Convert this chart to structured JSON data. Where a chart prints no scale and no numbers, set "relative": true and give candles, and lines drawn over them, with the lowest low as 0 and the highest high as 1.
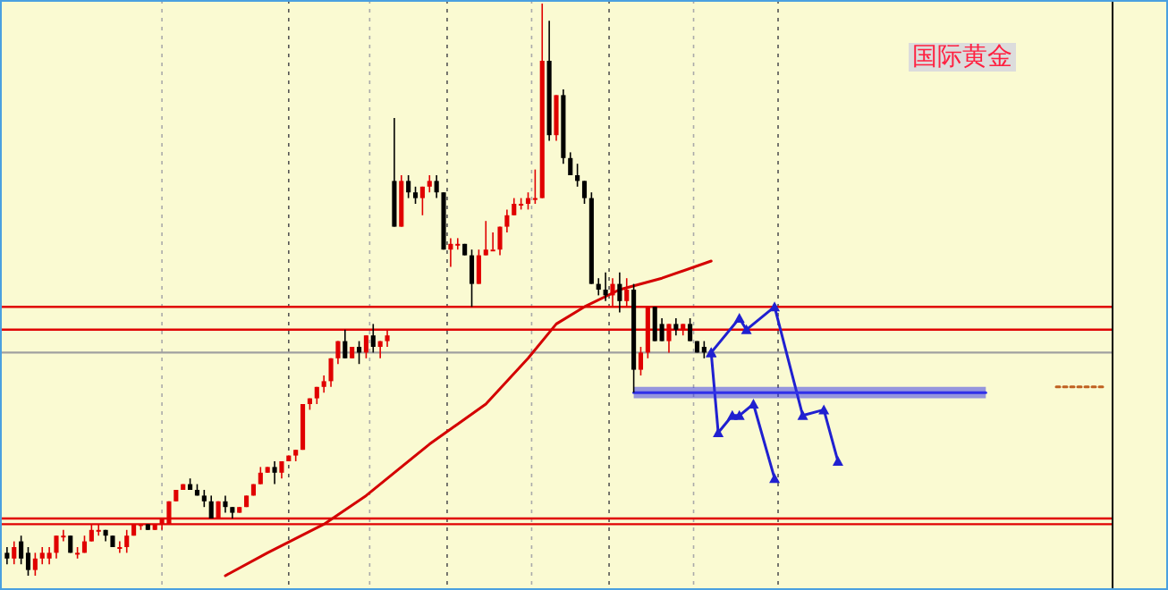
{
  "chart_data": {
    "type": "candlestick",
    "relative": true,
    "annotations": [
      "国际黄金"
    ],
    "categories": [
      null,
      null,
      null,
      null,
      null,
      null,
      null,
      null,
      null,
      null,
      null,
      null,
      null,
      null,
      null,
      null,
      null,
      null,
      null,
      null,
      null,
      null,
      null,
      null,
      null,
      null,
      null,
      null,
      null,
      null,
      null,
      null,
      null,
      null,
      null,
      null,
      null,
      null,
      null,
      null,
      null,
      null,
      null,
      null,
      null,
      null,
      null,
      null,
      null,
      null,
      null,
      null,
      null,
      null,
      null,
      null,
      null,
      null,
      null,
      null,
      null,
      null,
      null,
      null,
      null,
      null,
      null,
      null,
      null,
      null,
      null,
      null,
      null,
      null,
      null,
      null,
      null,
      null,
      null,
      null,
      null,
      null,
      null,
      null,
      null,
      null,
      null,
      null,
      null,
      null,
      null,
      null,
      null,
      null,
      null,
      null,
      null,
      null,
      null,
      null,
      null,
      null,
      null,
      null,
      null,
      null,
      null,
      null,
      null,
      null,
      null,
      null,
      null,
      null,
      null,
      null,
      null,
      null,
      null,
      null,
      null,
      null,
      null,
      null,
      null,
      null,
      null,
      null,
      null,
      null,
      null,
      null,
      null,
      null,
      null,
      null,
      null,
      null,
      null,
      null,
      null,
      null,
      null,
      null,
      null,
      null,
      null,
      null,
      null,
      null,
      null,
      null,
      null,
      null,
      null,
      null,
      null,
      null
    ],
    "ohlc": [
      [
        0.04,
        0.05,
        0.02,
        0.03
      ],
      [
        0.03,
        0.06,
        0.02,
        0.05
      ],
      [
        0.06,
        0.07,
        0.02,
        0.03
      ],
      [
        0.04,
        0.05,
        0.0,
        0.01
      ],
      [
        0.01,
        0.04,
        0.0,
        0.03
      ],
      [
        0.03,
        0.05,
        0.02,
        0.04
      ],
      [
        0.03,
        0.05,
        0.02,
        0.04
      ],
      [
        0.04,
        0.07,
        0.03,
        0.07
      ],
      [
        0.07,
        0.08,
        0.06,
        0.07
      ],
      [
        0.07,
        0.07,
        0.04,
        0.04
      ],
      [
        0.04,
        0.05,
        0.03,
        0.04
      ],
      [
        0.04,
        0.07,
        0.04,
        0.06
      ],
      [
        0.06,
        0.09,
        0.06,
        0.08
      ],
      [
        0.08,
        0.09,
        0.07,
        0.08
      ],
      [
        0.08,
        0.08,
        0.06,
        0.07
      ],
      [
        0.07,
        0.07,
        0.05,
        0.05
      ],
      [
        0.05,
        0.06,
        0.04,
        0.05
      ],
      [
        0.05,
        0.08,
        0.04,
        0.07
      ],
      [
        0.07,
        0.09,
        0.07,
        0.09
      ],
      [
        0.09,
        0.09,
        0.08,
        0.09
      ],
      [
        0.09,
        0.09,
        0.08,
        0.08
      ],
      [
        0.08,
        0.09,
        0.08,
        0.09
      ],
      [
        0.09,
        0.1,
        0.08,
        0.1
      ],
      [
        0.09,
        0.13,
        0.09,
        0.13
      ],
      [
        0.13,
        0.15,
        0.13,
        0.15
      ],
      [
        0.15,
        0.16,
        0.15,
        0.16
      ],
      [
        0.16,
        0.17,
        0.15,
        0.15
      ],
      [
        0.15,
        0.16,
        0.14,
        0.14
      ],
      [
        0.14,
        0.15,
        0.12,
        0.13
      ],
      [
        0.13,
        0.14,
        0.1,
        0.1
      ],
      [
        0.1,
        0.13,
        0.1,
        0.13
      ],
      [
        0.13,
        0.14,
        0.11,
        0.12
      ],
      [
        0.12,
        0.12,
        0.1,
        0.11
      ],
      [
        0.11,
        0.12,
        0.11,
        0.12
      ],
      [
        0.12,
        0.14,
        0.12,
        0.14
      ],
      [
        0.14,
        0.16,
        0.14,
        0.16
      ],
      [
        0.16,
        0.19,
        0.16,
        0.18
      ],
      [
        0.18,
        0.19,
        0.18,
        0.19
      ],
      [
        0.19,
        0.2,
        0.16,
        0.18
      ],
      [
        0.18,
        0.2,
        0.17,
        0.2
      ],
      [
        0.2,
        0.21,
        0.2,
        0.21
      ],
      [
        0.21,
        0.22,
        0.2,
        0.22
      ],
      [
        0.22,
        0.3,
        0.22,
        0.3
      ],
      [
        0.3,
        0.31,
        0.29,
        0.31
      ],
      [
        0.31,
        0.33,
        0.3,
        0.33
      ],
      [
        0.33,
        0.35,
        0.32,
        0.34
      ],
      [
        0.34,
        0.38,
        0.33,
        0.38
      ],
      [
        0.38,
        0.41,
        0.37,
        0.41
      ],
      [
        0.41,
        0.43,
        0.38,
        0.38
      ],
      [
        0.38,
        0.4,
        0.38,
        0.4
      ],
      [
        0.4,
        0.41,
        0.37,
        0.39
      ],
      [
        0.39,
        0.42,
        0.38,
        0.42
      ],
      [
        0.42,
        0.44,
        0.39,
        0.4
      ],
      [
        0.4,
        0.41,
        0.38,
        0.41
      ],
      [
        0.41,
        0.43,
        0.4,
        0.42
      ],
      [
        0.69,
        0.8,
        0.61,
        0.61
      ],
      [
        0.61,
        0.7,
        0.61,
        0.69
      ],
      [
        0.69,
        0.7,
        0.66,
        0.67
      ],
      [
        0.67,
        0.68,
        0.65,
        0.66
      ],
      [
        0.66,
        0.68,
        0.63,
        0.68
      ],
      [
        0.68,
        0.7,
        0.67,
        0.69
      ],
      [
        0.69,
        0.7,
        0.66,
        0.67
      ],
      [
        0.67,
        0.67,
        0.57,
        0.57
      ],
      [
        0.57,
        0.59,
        0.54,
        0.58
      ],
      [
        0.58,
        0.59,
        0.57,
        0.58
      ],
      [
        0.58,
        0.58,
        0.56,
        0.56
      ],
      [
        0.56,
        0.57,
        0.47,
        0.51
      ],
      [
        0.51,
        0.57,
        0.51,
        0.56
      ],
      [
        0.56,
        0.62,
        0.56,
        0.57
      ],
      [
        0.57,
        0.6,
        0.57,
        0.57
      ],
      [
        0.57,
        0.61,
        0.56,
        0.61
      ],
      [
        0.61,
        0.64,
        0.6,
        0.63
      ],
      [
        0.63,
        0.66,
        0.63,
        0.65
      ],
      [
        0.65,
        0.66,
        0.64,
        0.65
      ],
      [
        0.65,
        0.67,
        0.64,
        0.66
      ],
      [
        0.66,
        0.71,
        0.65,
        0.66
      ],
      [
        0.66,
        1.0,
        0.66,
        0.9
      ],
      [
        0.9,
        0.97,
        0.76,
        0.77
      ],
      [
        0.77,
        0.84,
        0.76,
        0.84
      ],
      [
        0.84,
        0.85,
        0.72,
        0.73
      ],
      [
        0.73,
        0.74,
        0.7,
        0.7
      ],
      [
        0.7,
        0.72,
        0.68,
        0.69
      ],
      [
        0.69,
        0.69,
        0.65,
        0.66
      ],
      [
        0.66,
        0.67,
        0.51,
        0.51
      ],
      [
        0.51,
        0.52,
        0.49,
        0.5
      ],
      [
        0.5,
        0.53,
        0.48,
        0.49
      ],
      [
        0.49,
        0.52,
        0.47,
        0.51
      ],
      [
        0.51,
        0.53,
        0.46,
        0.48
      ],
      [
        0.48,
        0.52,
        0.47,
        0.5
      ],
      [
        0.5,
        0.51,
        0.32,
        0.36
      ],
      [
        0.36,
        0.4,
        0.35,
        0.39
      ],
      [
        0.39,
        0.47,
        0.38,
        0.47
      ],
      [
        0.47,
        0.47,
        0.41,
        0.41
      ],
      [
        0.44,
        0.45,
        0.41,
        0.41
      ],
      [
        0.41,
        0.44,
        0.39,
        0.44
      ],
      [
        0.44,
        0.45,
        0.42,
        0.43
      ],
      [
        0.43,
        0.44,
        0.42,
        0.44
      ],
      [
        0.44,
        0.45,
        0.41,
        0.41
      ],
      [
        0.41,
        0.41,
        0.39,
        0.39
      ],
      [
        0.4,
        0.41,
        0.38,
        0.39
      ],
      null,
      null,
      null,
      null,
      null,
      null,
      null,
      null,
      null,
      null,
      null,
      null,
      null,
      null,
      null,
      null,
      null,
      null,
      null,
      null,
      null,
      null,
      null,
      null,
      null,
      null,
      null,
      null,
      null,
      null,
      null,
      null,
      null,
      null,
      null,
      null,
      null,
      null,
      null,
      null,
      null,
      null,
      null,
      null,
      null,
      null,
      null,
      null,
      null,
      null,
      null,
      null,
      null,
      null,
      null,
      null,
      null,
      null
    ],
    "series": [
      {
        "type": "line",
        "color": "#d40000",
        "values": [
          null,
          null,
          null,
          null,
          null,
          null,
          null,
          null,
          null,
          null,
          null,
          null,
          null,
          null,
          null,
          null,
          null,
          null,
          null,
          null,
          null,
          null,
          null,
          null,
          null,
          null,
          null,
          null,
          null,
          null,
          null,
          0.0,
          null,
          null,
          null,
          null,
          null,
          0.04,
          null,
          null,
          null,
          null,
          null,
          null,
          null,
          0.09,
          null,
          null,
          null,
          null,
          null,
          0.14,
          null,
          null,
          null,
          null,
          null,
          null,
          null,
          null,
          0.23,
          null,
          null,
          null,
          null,
          null,
          null,
          null,
          0.3,
          null,
          null,
          null,
          null,
          null,
          0.38,
          null,
          null,
          null,
          0.44,
          null,
          null,
          null,
          0.47,
          null,
          null,
          null,
          null,
          0.5,
          null,
          null,
          null,
          null,
          null,
          0.52,
          null,
          null,
          null,
          null,
          null,
          null,
          0.55,
          null,
          null,
          null,
          null,
          null,
          null,
          null,
          null,
          null,
          null,
          null,
          null,
          null,
          null,
          null,
          null,
          null,
          null,
          null,
          null,
          null,
          null,
          null,
          null,
          null,
          null,
          null,
          null,
          null,
          null,
          null,
          null,
          null,
          null,
          null,
          null,
          null,
          null,
          null,
          null,
          null,
          null,
          null,
          null,
          null,
          null,
          null,
          null,
          null,
          null,
          null,
          null,
          null,
          null,
          null,
          null,
          null
        ]
      },
      {
        "type": "line",
        "color": "#2020d0",
        "marker": "triangle",
        "values": [
          null,
          null,
          null,
          null,
          null,
          null,
          null,
          null,
          null,
          null,
          null,
          null,
          null,
          null,
          null,
          null,
          null,
          null,
          null,
          null,
          null,
          null,
          null,
          null,
          null,
          null,
          null,
          null,
          null,
          null,
          null,
          null,
          null,
          null,
          null,
          null,
          null,
          null,
          null,
          null,
          null,
          null,
          null,
          null,
          null,
          null,
          null,
          null,
          null,
          null,
          null,
          null,
          null,
          null,
          null,
          null,
          null,
          null,
          null,
          null,
          null,
          null,
          null,
          null,
          null,
          null,
          null,
          null,
          null,
          null,
          null,
          null,
          null,
          null,
          null,
          null,
          null,
          null,
          null,
          null,
          null,
          null,
          null,
          null,
          null,
          null,
          null,
          null,
          null,
          null,
          null,
          null,
          null,
          null,
          null,
          null,
          null,
          null,
          null,
          null,
          0.39,
          null,
          null,
          null,
          0.45,
          0.43,
          null,
          null,
          null,
          0.47,
          null,
          null,
          null,
          0.28,
          null,
          null,
          0.29,
          null,
          0.2,
          null,
          null,
          null,
          null,
          null,
          null,
          null,
          null,
          null,
          null,
          null,
          null,
          null,
          null,
          null,
          null,
          null,
          null,
          null,
          null,
          null,
          null,
          null,
          null,
          null,
          null,
          null,
          null,
          null,
          null,
          null,
          null,
          null,
          null,
          null,
          null,
          null,
          null,
          null
        ]
      },
      {
        "type": "line",
        "color": "#2020d0",
        "marker": "triangle",
        "values": [
          null,
          null,
          null,
          null,
          null,
          null,
          null,
          null,
          null,
          null,
          null,
          null,
          null,
          null,
          null,
          null,
          null,
          null,
          null,
          null,
          null,
          null,
          null,
          null,
          null,
          null,
          null,
          null,
          null,
          null,
          null,
          null,
          null,
          null,
          null,
          null,
          null,
          null,
          null,
          null,
          null,
          null,
          null,
          null,
          null,
          null,
          null,
          null,
          null,
          null,
          null,
          null,
          null,
          null,
          null,
          null,
          null,
          null,
          null,
          null,
          null,
          null,
          null,
          null,
          null,
          null,
          null,
          null,
          null,
          null,
          null,
          null,
          null,
          null,
          null,
          null,
          null,
          null,
          null,
          null,
          null,
          null,
          null,
          null,
          null,
          null,
          null,
          null,
          null,
          null,
          null,
          null,
          null,
          null,
          null,
          null,
          null,
          null,
          null,
          null,
          0.39,
          0.25,
          null,
          0.28,
          0.28,
          null,
          0.3,
          null,
          null,
          0.17,
          null,
          null,
          null,
          null,
          null,
          null,
          null,
          null,
          null,
          null,
          null,
          null,
          null,
          null,
          null,
          null,
          null,
          null,
          null,
          null,
          null,
          null,
          null,
          null,
          null,
          null,
          null,
          null,
          null,
          null,
          null,
          null,
          null,
          null,
          null,
          null,
          null,
          null,
          null,
          null,
          null,
          null,
          null,
          null,
          null,
          null,
          null,
          null
        ]
      },
      {
        "type": "line",
        "color": "#3030e8",
        "values": [
          null,
          null,
          null,
          null,
          null,
          null,
          null,
          null,
          null,
          null,
          null,
          null,
          null,
          null,
          null,
          null,
          null,
          null,
          null,
          null,
          null,
          null,
          null,
          null,
          null,
          null,
          null,
          null,
          null,
          null,
          null,
          null,
          null,
          null,
          null,
          null,
          null,
          null,
          null,
          null,
          null,
          null,
          null,
          null,
          null,
          null,
          null,
          null,
          null,
          null,
          null,
          null,
          null,
          null,
          null,
          null,
          null,
          null,
          null,
          null,
          null,
          null,
          null,
          null,
          null,
          null,
          null,
          null,
          null,
          null,
          null,
          null,
          null,
          null,
          null,
          null,
          null,
          null,
          null,
          null,
          null,
          null,
          null,
          null,
          null,
          null,
          null,
          null,
          null,
          0.32,
          null,
          null,
          null,
          null,
          null,
          null,
          null,
          null,
          null,
          null,
          null,
          null,
          null,
          null,
          null,
          null,
          null,
          null,
          null,
          null,
          null,
          null,
          null,
          null,
          null,
          null,
          null,
          null,
          null,
          null,
          null,
          null,
          null,
          null,
          null,
          null,
          null,
          null,
          null,
          null,
          null,
          null,
          null,
          null,
          null,
          null,
          null,
          null,
          null,
          0.32,
          null,
          null,
          null,
          null,
          null,
          null,
          null,
          null,
          null,
          null,
          null,
          null,
          null,
          null,
          null,
          null,
          null,
          null
        ],
        "lower": [
          null,
          null,
          null,
          null,
          null,
          null,
          null,
          null,
          null,
          null,
          null,
          null,
          null,
          null,
          null,
          null,
          null,
          null,
          null,
          null,
          null,
          null,
          null,
          null,
          null,
          null,
          null,
          null,
          null,
          null,
          null,
          null,
          null,
          null,
          null,
          null,
          null,
          null,
          null,
          null,
          null,
          null,
          null,
          null,
          null,
          null,
          null,
          null,
          null,
          null,
          null,
          null,
          null,
          null,
          null,
          null,
          null,
          null,
          null,
          null,
          null,
          null,
          null,
          null,
          null,
          null,
          null,
          null,
          null,
          null,
          null,
          null,
          null,
          null,
          null,
          null,
          null,
          null,
          null,
          null,
          null,
          null,
          null,
          null,
          null,
          null,
          null,
          null,
          null,
          0.31,
          null,
          null,
          null,
          null,
          null,
          null,
          null,
          null,
          null,
          null,
          null,
          null,
          null,
          null,
          null,
          null,
          null,
          null,
          null,
          null,
          null,
          null,
          null,
          null,
          null,
          null,
          null,
          null,
          null,
          null,
          null,
          null,
          null,
          null,
          null,
          null,
          null,
          null,
          null,
          null,
          null,
          null,
          null,
          null,
          null,
          null,
          null,
          null,
          null,
          0.31,
          null,
          null,
          null,
          null,
          null,
          null,
          null,
          null,
          null,
          null,
          null,
          null,
          null,
          null,
          null,
          null,
          null,
          null
        ],
        "upper": [
          null,
          null,
          null,
          null,
          null,
          null,
          null,
          null,
          null,
          null,
          null,
          null,
          null,
          null,
          null,
          null,
          null,
          null,
          null,
          null,
          null,
          null,
          null,
          null,
          null,
          null,
          null,
          null,
          null,
          null,
          null,
          null,
          null,
          null,
          null,
          null,
          null,
          null,
          null,
          null,
          null,
          null,
          null,
          null,
          null,
          null,
          null,
          null,
          null,
          null,
          null,
          null,
          null,
          null,
          null,
          null,
          null,
          null,
          null,
          null,
          null,
          null,
          null,
          null,
          null,
          null,
          null,
          null,
          null,
          null,
          null,
          null,
          null,
          null,
          null,
          null,
          null,
          null,
          null,
          null,
          null,
          null,
          null,
          null,
          null,
          null,
          null,
          null,
          null,
          0.33,
          null,
          null,
          null,
          null,
          null,
          null,
          null,
          null,
          null,
          null,
          null,
          null,
          null,
          null,
          null,
          null,
          null,
          null,
          null,
          null,
          null,
          null,
          null,
          null,
          null,
          null,
          null,
          null,
          null,
          null,
          null,
          null,
          null,
          null,
          null,
          null,
          null,
          null,
          null,
          null,
          null,
          null,
          null,
          null,
          null,
          null,
          null,
          null,
          null,
          0.33,
          null,
          null,
          null,
          null,
          null,
          null,
          null,
          null,
          null,
          null,
          null,
          null,
          null,
          null,
          null,
          null,
          null,
          null
        ]
      },
      {
        "type": "line",
        "color": "#c06020",
        "line_style": "dotted",
        "values": [
          null,
          null,
          null,
          null,
          null,
          null,
          null,
          null,
          null,
          null,
          null,
          null,
          null,
          null,
          null,
          null,
          null,
          null,
          null,
          null,
          null,
          null,
          null,
          null,
          null,
          null,
          null,
          null,
          null,
          null,
          null,
          null,
          null,
          null,
          null,
          null,
          null,
          null,
          null,
          null,
          null,
          null,
          null,
          null,
          null,
          null,
          null,
          null,
          null,
          null,
          null,
          null,
          null,
          null,
          null,
          null,
          null,
          null,
          null,
          null,
          null,
          null,
          null,
          null,
          null,
          null,
          null,
          null,
          null,
          null,
          null,
          null,
          null,
          null,
          null,
          null,
          null,
          null,
          null,
          null,
          null,
          null,
          null,
          null,
          null,
          null,
          null,
          null,
          null,
          null,
          null,
          null,
          null,
          null,
          null,
          null,
          null,
          null,
          null,
          null,
          null,
          null,
          null,
          null,
          null,
          null,
          null,
          null,
          null,
          null,
          null,
          null,
          null,
          null,
          null,
          null,
          null,
          null,
          null,
          null,
          null,
          null,
          null,
          null,
          null,
          null,
          null,
          null,
          null,
          null,
          null,
          null,
          null,
          null,
          null,
          null,
          null,
          null,
          null,
          null,
          null,
          null,
          null,
          null,
          null,
          null,
          null,
          null,
          null,
          0.33,
          null,
          null,
          null,
          null,
          null,
          null,
          0.33,
          null
        ]
      }
    ],
    "ref_lines": [
      {
        "axis": "y",
        "value": 0.47,
        "color": "#e00000"
      },
      {
        "axis": "y",
        "value": 0.43,
        "color": "#e00000"
      },
      {
        "axis": "y",
        "value": 0.39,
        "color": "#a0a0a0"
      },
      {
        "axis": "y",
        "value": 0.1,
        "color": "#e00000"
      },
      {
        "axis": "y",
        "value": 0.09,
        "color": "#e00000"
      }
    ]
  }
}
